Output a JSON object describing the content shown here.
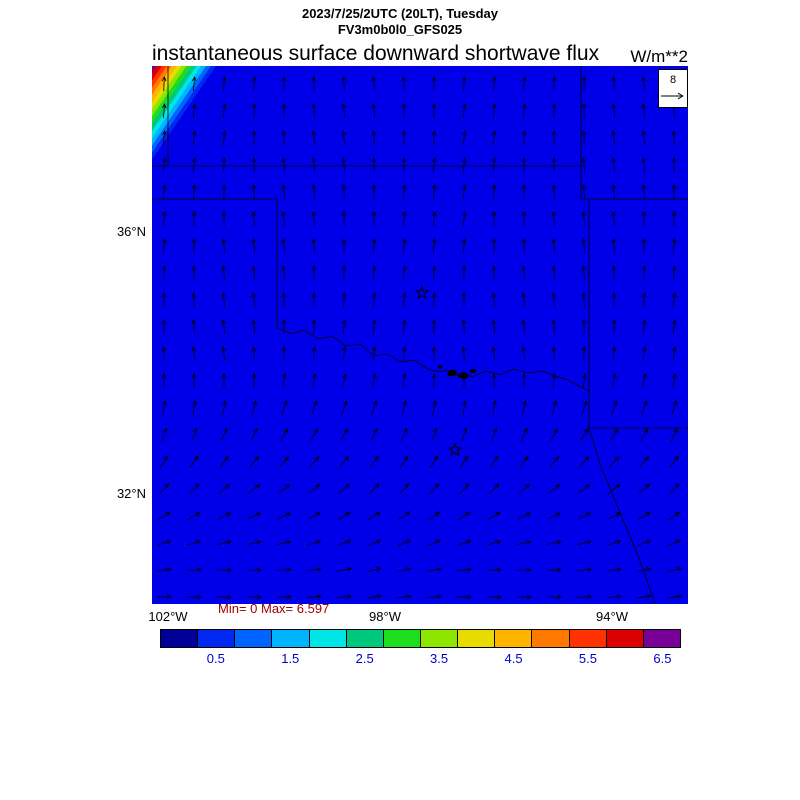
{
  "header": {
    "datetime_line": "2023/7/25/2UTC (20LT), Tuesday",
    "model_line": "FV3m0b0l0_GFS025"
  },
  "plot": {
    "title": "instantaneous surface downward shortwave flux",
    "units": "W/m**2"
  },
  "reference_vector": {
    "label": "8"
  },
  "stats_line": "Min= 0 Max= 6.597",
  "axes": {
    "lat_labels": [
      "36°N",
      "32°N"
    ],
    "lon_labels": [
      "102°W",
      "98°W",
      "94°W"
    ]
  },
  "colorbar": {
    "tick_labels": [
      "0.5",
      "1.5",
      "2.5",
      "3.5",
      "4.5",
      "5.5",
      "6.5"
    ],
    "colors": [
      "#000096",
      "#0028f0",
      "#0064ff",
      "#00b4ff",
      "#00e6e6",
      "#00c87d",
      "#1edc1e",
      "#8ce600",
      "#e6dc00",
      "#ffb400",
      "#ff7800",
      "#ff3200",
      "#dc0000",
      "#780096"
    ]
  },
  "colors": {
    "map_fill": "#0000e8",
    "stats_text": "#a00000",
    "colorbar_label": "#0000cc",
    "border_line": "#000000"
  },
  "chart_data": {
    "type": "heatmap",
    "title": "instantaneous surface downward shortwave flux",
    "units": "W/m**2",
    "valid_time": "2023/7/25/2UTC (20LT), Tuesday",
    "model": "FV3m0b0l0_GFS025",
    "stats": {
      "min": 0,
      "max": 6.597
    },
    "colorbar_tick_values": [
      0.5,
      1.5,
      2.5,
      3.5,
      4.5,
      5.5,
      6.5
    ],
    "x_ticks": [
      "102°W",
      "98°W",
      "94°W"
    ],
    "y_ticks": [
      "36°N",
      "32°N"
    ],
    "vector_reference_value": 8,
    "region": "Oklahoma / north Texas sector with state borders and Red River",
    "field_summary": "Flux is ~0 (lowest bin, solid blue) over nearly the whole domain; a narrow rainbow-banded gradient rising to the 6.597 maximum hugs the far northwest corner (evening terminator).",
    "vector_summary": "Wind vectors point northward (southerly flow) over most of the map, veering to eastward (westerly flow) across the southern rows.",
    "markers": "Two open star city markers (central Oklahoma and north Texas); small black lakes along the Red River."
  }
}
